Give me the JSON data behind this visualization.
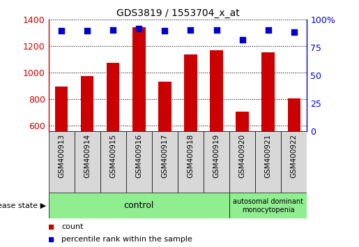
{
  "title": "GDS3819 / 1553704_x_at",
  "samples": [
    "GSM400913",
    "GSM400914",
    "GSM400915",
    "GSM400916",
    "GSM400917",
    "GSM400918",
    "GSM400919",
    "GSM400920",
    "GSM400921",
    "GSM400922"
  ],
  "counts": [
    897,
    975,
    1075,
    1345,
    935,
    1140,
    1170,
    705,
    1155,
    808
  ],
  "percentile_ranks": [
    90,
    90,
    91,
    92,
    90,
    91,
    91,
    82,
    91,
    89
  ],
  "ylim_left": [
    560,
    1400
  ],
  "ylim_right": [
    0,
    100
  ],
  "yticks_left": [
    600,
    800,
    1000,
    1200,
    1400
  ],
  "yticks_right": [
    0,
    25,
    50,
    75,
    100
  ],
  "bar_color": "#cc0000",
  "scatter_color": "#0000cc",
  "dot_size": 40,
  "control_count": 7,
  "disease_label": "autosomal dominant\nmonocytopenia",
  "control_label": "control",
  "group_color": "#90ee90",
  "background_color": "#ffffff",
  "right_axis_color": "#0000cc",
  "left_axis_color": "#cc0000",
  "cell_bg_color": "#d8d8d8",
  "legend_count_label": "count",
  "legend_pct_label": "percentile rank within the sample",
  "disease_state_label": "disease state"
}
